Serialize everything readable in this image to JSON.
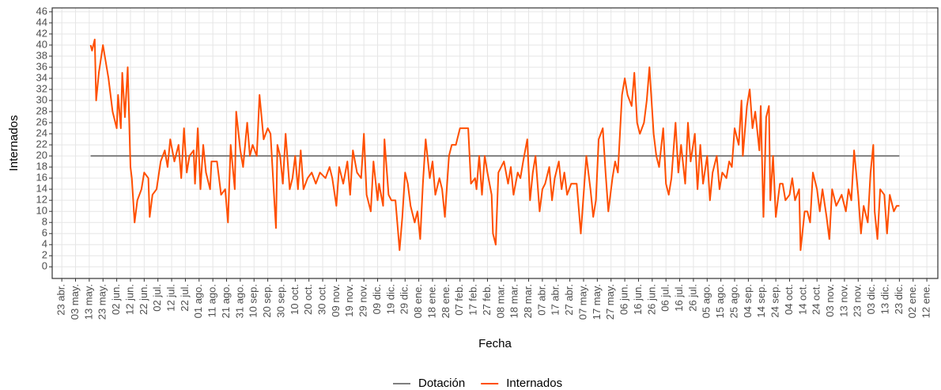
{
  "chart_data": {
    "type": "line",
    "x_label": "Fecha",
    "y_label": "Internados",
    "legend": "bottom",
    "grid": true,
    "xlim": [
      -7,
      638
    ],
    "ylim": [
      -2.1,
      46.7
    ],
    "yticks": [
      0,
      2,
      4,
      6,
      8,
      10,
      12,
      14,
      16,
      18,
      20,
      22,
      24,
      26,
      28,
      30,
      32,
      34,
      36,
      38,
      40,
      42,
      44,
      46
    ],
    "xticks": [
      {
        "value": 0,
        "label": "23 abr."
      },
      {
        "value": 10,
        "label": "03 may."
      },
      {
        "value": 20,
        "label": "13 may."
      },
      {
        "value": 30,
        "label": "23 may."
      },
      {
        "value": 40,
        "label": "02 jun."
      },
      {
        "value": 50,
        "label": "12 jun."
      },
      {
        "value": 60,
        "label": "22 jun."
      },
      {
        "value": 70,
        "label": "02 jul."
      },
      {
        "value": 80,
        "label": "12 jul."
      },
      {
        "value": 90,
        "label": "22 jul."
      },
      {
        "value": 100,
        "label": "01 ago."
      },
      {
        "value": 110,
        "label": "11 ago."
      },
      {
        "value": 120,
        "label": "21 ago."
      },
      {
        "value": 130,
        "label": "31 ago."
      },
      {
        "value": 140,
        "label": "10 sep."
      },
      {
        "value": 150,
        "label": "20 sep."
      },
      {
        "value": 160,
        "label": "30 sep."
      },
      {
        "value": 170,
        "label": "10 oct."
      },
      {
        "value": 180,
        "label": "20 oct."
      },
      {
        "value": 190,
        "label": "30 oct."
      },
      {
        "value": 200,
        "label": "09 nov."
      },
      {
        "value": 210,
        "label": "19 nov."
      },
      {
        "value": 220,
        "label": "29 nov."
      },
      {
        "value": 230,
        "label": "09 dic."
      },
      {
        "value": 240,
        "label": "19 dic."
      },
      {
        "value": 250,
        "label": "29 dic."
      },
      {
        "value": 260,
        "label": "08 ene."
      },
      {
        "value": 270,
        "label": "18 ene."
      },
      {
        "value": 280,
        "label": "28 ene."
      },
      {
        "value": 290,
        "label": "07 feb."
      },
      {
        "value": 300,
        "label": "17 feb."
      },
      {
        "value": 310,
        "label": "27 feb."
      },
      {
        "value": 320,
        "label": "08 mar."
      },
      {
        "value": 330,
        "label": "18 mar."
      },
      {
        "value": 340,
        "label": "28 mar."
      },
      {
        "value": 350,
        "label": "07 abr."
      },
      {
        "value": 360,
        "label": "17 abr."
      },
      {
        "value": 370,
        "label": "27 abr."
      },
      {
        "value": 380,
        "label": "07 may."
      },
      {
        "value": 390,
        "label": "17 may."
      },
      {
        "value": 400,
        "label": "27 may."
      },
      {
        "value": 410,
        "label": "06 jun."
      },
      {
        "value": 420,
        "label": "16 jun."
      },
      {
        "value": 430,
        "label": "26 jun."
      },
      {
        "value": 440,
        "label": "06 jul."
      },
      {
        "value": 450,
        "label": "16 jul."
      },
      {
        "value": 460,
        "label": "26 jul."
      },
      {
        "value": 470,
        "label": "05 ago."
      },
      {
        "value": 480,
        "label": "15 ago."
      },
      {
        "value": 490,
        "label": "25 ago."
      },
      {
        "value": 500,
        "label": "04 sep."
      },
      {
        "value": 510,
        "label": "14 sep."
      },
      {
        "value": 520,
        "label": "24 sep."
      },
      {
        "value": 530,
        "label": "04 oct."
      },
      {
        "value": 540,
        "label": "14 oct."
      },
      {
        "value": 550,
        "label": "24 oct."
      },
      {
        "value": 560,
        "label": "03 nov."
      },
      {
        "value": 570,
        "label": "13 nov."
      },
      {
        "value": 580,
        "label": "23 nov."
      },
      {
        "value": 590,
        "label": "03 dic."
      },
      {
        "value": 600,
        "label": "13 dic."
      },
      {
        "value": 610,
        "label": "23 dic."
      },
      {
        "value": 620,
        "label": "02 ene."
      },
      {
        "value": 630,
        "label": "12 ene."
      }
    ],
    "series": [
      {
        "name": "Dotación",
        "color": "#7f7f7f",
        "x": [
          21,
          610
        ],
        "values": [
          20,
          20
        ]
      },
      {
        "name": "Internados",
        "color": "#ff4f00",
        "x": [
          21,
          22,
          24,
          25,
          27,
          30,
          34,
          37,
          40,
          41,
          43,
          44,
          46,
          48,
          50,
          51,
          53,
          55,
          58,
          60,
          63,
          64,
          66,
          69,
          72,
          75,
          77,
          79,
          82,
          85,
          87,
          89,
          91,
          93,
          96,
          97,
          99,
          101,
          103,
          105,
          108,
          109,
          113,
          116,
          119,
          121,
          123,
          126,
          127,
          130,
          132,
          135,
          137,
          139,
          142,
          144,
          147,
          150,
          152,
          155,
          156,
          157,
          159,
          161,
          163,
          166,
          168,
          170,
          172,
          174,
          176,
          179,
          182,
          185,
          188,
          192,
          195,
          197,
          200,
          202,
          205,
          208,
          210,
          212,
          215,
          218,
          220,
          222,
          225,
          227,
          230,
          231,
          234,
          235,
          238,
          240,
          243,
          246,
          248,
          250,
          252,
          254,
          257,
          259,
          261,
          263,
          265,
          268,
          270,
          272,
          275,
          277,
          279,
          282,
          284,
          287,
          290,
          292,
          296,
          298,
          301,
          302,
          304,
          306,
          308,
          310,
          313,
          314,
          316,
          318,
          320,
          322,
          325,
          327,
          329,
          332,
          334,
          336,
          339,
          341,
          343,
          345,
          348,
          350,
          352,
          355,
          357,
          359,
          362,
          364,
          366,
          368,
          371,
          373,
          375,
          378,
          380,
          382,
          385,
          387,
          389,
          391,
          394,
          396,
          398,
          401,
          403,
          405,
          408,
          410,
          412,
          415,
          417,
          419,
          421,
          424,
          426,
          428,
          431,
          433,
          435,
          438,
          440,
          442,
          444,
          447,
          449,
          451,
          454,
          456,
          458,
          461,
          463,
          465,
          467,
          470,
          472,
          474,
          477,
          479,
          481,
          484,
          486,
          488,
          490,
          493,
          495,
          496,
          499,
          501,
          503,
          505,
          508,
          509,
          511,
          513,
          515,
          516,
          518,
          520,
          523,
          525,
          527,
          530,
          532,
          534,
          537,
          538,
          541,
          543,
          545,
          547,
          550,
          552,
          554,
          557,
          559,
          561,
          564,
          566,
          568,
          571,
          573,
          575,
          577,
          580,
          582,
          584,
          587,
          589,
          591,
          592,
          594,
          596,
          599,
          601,
          603,
          606,
          608,
          610
        ],
        "values": [
          40,
          39,
          41,
          30,
          35,
          40,
          34,
          28,
          25,
          31,
          25,
          35,
          27,
          36,
          18,
          16,
          8,
          12,
          14,
          17,
          16,
          9,
          13,
          14,
          19,
          21,
          18,
          23,
          19,
          22,
          16,
          25,
          17,
          20,
          21,
          15,
          25,
          14,
          22,
          17,
          14,
          19,
          19,
          13,
          14,
          8,
          22,
          14,
          28,
          21,
          18,
          26,
          20,
          22,
          20,
          31,
          23,
          25,
          24,
          11,
          7,
          22,
          20,
          15,
          24,
          14,
          16,
          20,
          14,
          21,
          14,
          16,
          17,
          15,
          17,
          16,
          18,
          16,
          11,
          18,
          15,
          19,
          13,
          21,
          17,
          16,
          24,
          13,
          10,
          19,
          12,
          15,
          11,
          23,
          13,
          12,
          12,
          3,
          9,
          17,
          15,
          11,
          8,
          10,
          5,
          15,
          23,
          16,
          19,
          13,
          16,
          14,
          9,
          20,
          22,
          22,
          25,
          25,
          25,
          15,
          16,
          14,
          20,
          13,
          20,
          17,
          13,
          6,
          4,
          17,
          18,
          19,
          15,
          18,
          13,
          17,
          16,
          19,
          23,
          12,
          17,
          20,
          10,
          14,
          15,
          18,
          12,
          16,
          19,
          14,
          17,
          13,
          15,
          15,
          15,
          6,
          13,
          20,
          14,
          9,
          12,
          23,
          25,
          17,
          10,
          16,
          19,
          17,
          31,
          34,
          31,
          29,
          35,
          26,
          24,
          26,
          30,
          36,
          24,
          20,
          18,
          25,
          15,
          13,
          16,
          26,
          17,
          22,
          15,
          26,
          19,
          24,
          14,
          22,
          15,
          20,
          12,
          17,
          20,
          14,
          17,
          16,
          19,
          18,
          25,
          22,
          30,
          20,
          29,
          32,
          25,
          28,
          21,
          29,
          9,
          27,
          29,
          12,
          20,
          9,
          15,
          15,
          12,
          13,
          16,
          12,
          14,
          3,
          10,
          10,
          8,
          17,
          14,
          10,
          14,
          9,
          5,
          14,
          11,
          12,
          13,
          10,
          14,
          12,
          21,
          13,
          6,
          11,
          8,
          17,
          22,
          10,
          5,
          14,
          13,
          6,
          13,
          10,
          11,
          11
        ]
      }
    ]
  }
}
